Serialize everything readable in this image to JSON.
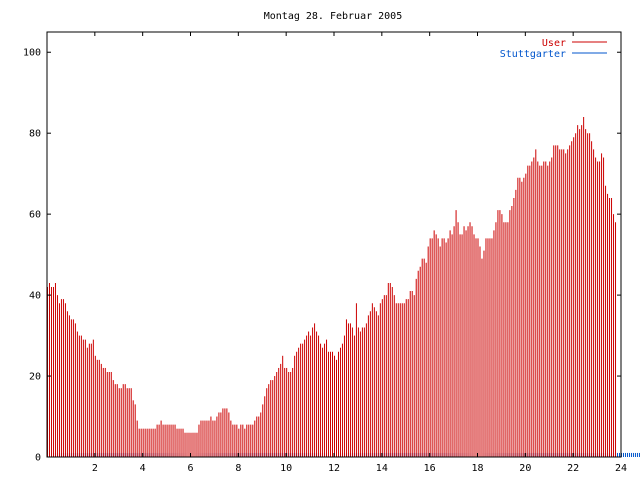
{
  "chart_data": {
    "type": "bar",
    "title": "Montag 28. Februar 2005",
    "xlabel": "",
    "ylabel": "",
    "xlim": [
      0,
      24
    ],
    "ylim": [
      0,
      105
    ],
    "x_ticks": [
      "2",
      "4",
      "6",
      "8",
      "10",
      "12",
      "14",
      "16",
      "18",
      "20",
      "22",
      "24"
    ],
    "y_ticks": [
      "0",
      "20",
      "40",
      "60",
      "80",
      "100"
    ],
    "legend_position": "top-right",
    "series": [
      {
        "name": "User",
        "color": "#cc0000",
        "interval_minutes": 5,
        "values": [
          42,
          43,
          42,
          42,
          43,
          40,
          38,
          39,
          39,
          38,
          36,
          35,
          34,
          34,
          33,
          31,
          30,
          30,
          29,
          29,
          27,
          28,
          28,
          29,
          25,
          24,
          24,
          23,
          22,
          22,
          21,
          21,
          21,
          19,
          18,
          18,
          17,
          17,
          18,
          18,
          17,
          17,
          17,
          14,
          13,
          9,
          7,
          7,
          7,
          7,
          7,
          7,
          7,
          7,
          7,
          8,
          8,
          9,
          8,
          8,
          8,
          8,
          8,
          8,
          8,
          7,
          7,
          7,
          7,
          6,
          6,
          6,
          6,
          6,
          6,
          6,
          8,
          9,
          9,
          9,
          9,
          9,
          10,
          9,
          9,
          10,
          11,
          11,
          12,
          12,
          12,
          11,
          9,
          8,
          8,
          8,
          7,
          8,
          8,
          7,
          8,
          8,
          8,
          8,
          9,
          10,
          10,
          11,
          13,
          15,
          17,
          18,
          19,
          19,
          20,
          21,
          22,
          23,
          25,
          22,
          22,
          21,
          21,
          22,
          25,
          26,
          27,
          28,
          28,
          29,
          30,
          31,
          30,
          32,
          33,
          31,
          30,
          28,
          27,
          28,
          29,
          26,
          26,
          26,
          25,
          24,
          26,
          27,
          28,
          30,
          34,
          33,
          33,
          32,
          30,
          38,
          32,
          31,
          32,
          32,
          33,
          35,
          36,
          38,
          37,
          36,
          35,
          38,
          39,
          40,
          40,
          43,
          43,
          42,
          40,
          38,
          38,
          38,
          38,
          38,
          39,
          39,
          41,
          41,
          40,
          44,
          46,
          47,
          49,
          49,
          48,
          52,
          54,
          54,
          56,
          55,
          54,
          52,
          54,
          54,
          53,
          54,
          56,
          55,
          57,
          61,
          58,
          55,
          55,
          57,
          56,
          57,
          58,
          57,
          55,
          54,
          54,
          52,
          49,
          51,
          54,
          54,
          54,
          54,
          56,
          58,
          61,
          61,
          60,
          58,
          58,
          58,
          61,
          62,
          64,
          66,
          69,
          69,
          68,
          69,
          70,
          72,
          72,
          73,
          74,
          76,
          73,
          72,
          72,
          73,
          73,
          72,
          73,
          74,
          77,
          77,
          77,
          76,
          76,
          76,
          75,
          76,
          77,
          78,
          79,
          80,
          82,
          81,
          82,
          84,
          81,
          80,
          80,
          78,
          76,
          74,
          73,
          73,
          75,
          74,
          67,
          65,
          64,
          64,
          60,
          58
        ]
      },
      {
        "name": "Stuttgarter",
        "color": "#0055cc",
        "interval_minutes": 5,
        "values": [
          1,
          1,
          1,
          1,
          1,
          1,
          1,
          1,
          1,
          1,
          1,
          1,
          1,
          1,
          1,
          1,
          1,
          1,
          1,
          1,
          1,
          1,
          1,
          1,
          1,
          1,
          1,
          1,
          1,
          1,
          1,
          1,
          1,
          1,
          1,
          1,
          1,
          1,
          1,
          1,
          1,
          1,
          1,
          1,
          1,
          1,
          1,
          1,
          1,
          1,
          1,
          1,
          1,
          1,
          1,
          1,
          1,
          1,
          1,
          1,
          1,
          1,
          1,
          1,
          1,
          1,
          1,
          1,
          1,
          1,
          1,
          1,
          1,
          1,
          1,
          1,
          1,
          1,
          1,
          1,
          1,
          1,
          1,
          1,
          1,
          1,
          1,
          1,
          1,
          1,
          1,
          1,
          1,
          1,
          1,
          1,
          1,
          1,
          1,
          1,
          1,
          1,
          1,
          1,
          1,
          1,
          1,
          1,
          1,
          1,
          1,
          1,
          1,
          1,
          1,
          1,
          1,
          1,
          1,
          1,
          1,
          1,
          1,
          1,
          1,
          1,
          1,
          1,
          1,
          1,
          1,
          1,
          1,
          1,
          1,
          1,
          1,
          1,
          1,
          1,
          1,
          1,
          1,
          1,
          1,
          1,
          1,
          1,
          1,
          1,
          1,
          1,
          1,
          1,
          1,
          1,
          1,
          1,
          1,
          1,
          1,
          1,
          1,
          1,
          1,
          1,
          1,
          1,
          1,
          1,
          1,
          1,
          1,
          1,
          1,
          1,
          1,
          1,
          1,
          1,
          1,
          1,
          1,
          1,
          1,
          1,
          1,
          1,
          1,
          1,
          1,
          1,
          1,
          1,
          1,
          1,
          1,
          1,
          1,
          1,
          1,
          1,
          1,
          1,
          1,
          1,
          1,
          1,
          1,
          1,
          1,
          1,
          1,
          1,
          1,
          1,
          1,
          1,
          1,
          1,
          1,
          1,
          1,
          1,
          1,
          1,
          1,
          1,
          1,
          1,
          1,
          1,
          1,
          1,
          1,
          1,
          1,
          1,
          1,
          1,
          1,
          1,
          1,
          1,
          1,
          1,
          1,
          1,
          1,
          1,
          1,
          1,
          1,
          1,
          1,
          1,
          1,
          1,
          1,
          1,
          1,
          1,
          1,
          1,
          1,
          1,
          1,
          1,
          1,
          1,
          1,
          1,
          1,
          1,
          1,
          1,
          1,
          1,
          1,
          1,
          1,
          1,
          1,
          1,
          1,
          1,
          1,
          1,
          1,
          1,
          1,
          1,
          1,
          1,
          1,
          1,
          1,
          1,
          1,
          1,
          1,
          1,
          1,
          1,
          1,
          1,
          1,
          1,
          1,
          1,
          1,
          1
        ]
      }
    ]
  }
}
